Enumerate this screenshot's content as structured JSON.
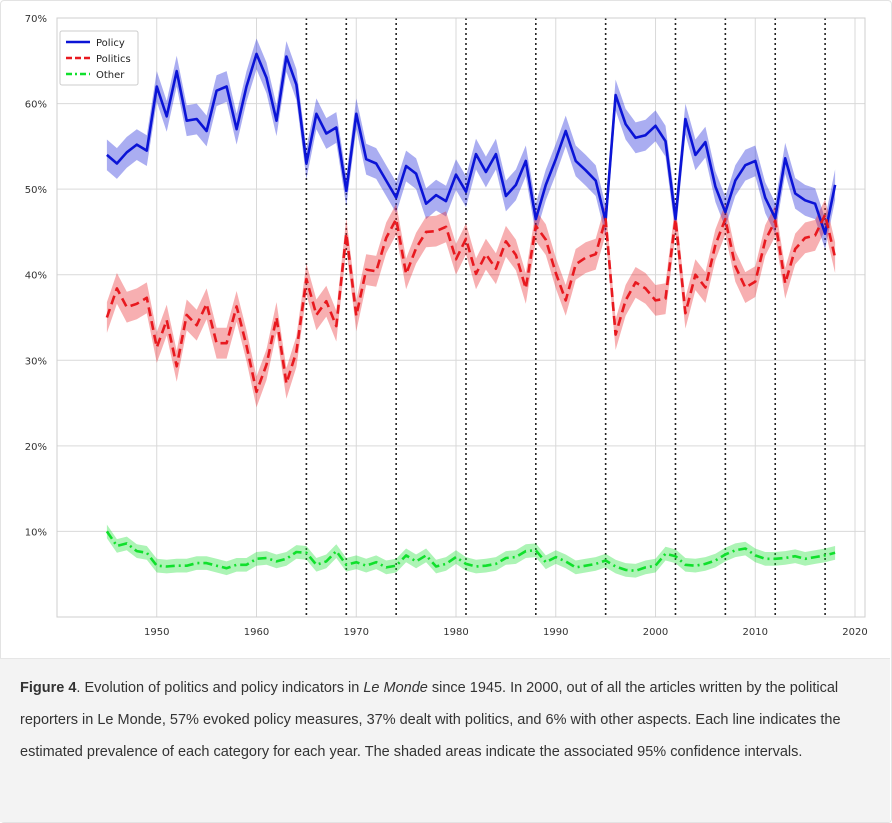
{
  "chart_data": {
    "type": "line",
    "title": "",
    "xlabel": "",
    "ylabel": "",
    "xlim": [
      1940,
      2021
    ],
    "ylim": [
      0,
      70
    ],
    "grid": true,
    "legend_position": "top-left",
    "x_ticks": [
      1950,
      1960,
      1970,
      1980,
      1990,
      2000,
      2010,
      2020
    ],
    "y_ticks": [
      "10%",
      "20%",
      "30%",
      "40%",
      "50%",
      "60%",
      "70%"
    ],
    "y_tick_values": [
      10,
      20,
      30,
      40,
      50,
      60,
      70
    ],
    "vertical_markers": [
      1965,
      1969,
      1974,
      1981,
      1988,
      1995,
      2002,
      2007,
      2012,
      2017
    ],
    "x": [
      1945,
      1946,
      1947,
      1948,
      1949,
      1950,
      1951,
      1952,
      1953,
      1954,
      1955,
      1956,
      1957,
      1958,
      1959,
      1960,
      1961,
      1962,
      1963,
      1964,
      1965,
      1966,
      1967,
      1968,
      1969,
      1970,
      1971,
      1972,
      1973,
      1974,
      1975,
      1976,
      1977,
      1978,
      1979,
      1980,
      1981,
      1982,
      1983,
      1984,
      1985,
      1986,
      1987,
      1988,
      1989,
      1990,
      1991,
      1992,
      1993,
      1994,
      1995,
      1996,
      1997,
      1998,
      1999,
      2000,
      2001,
      2002,
      2003,
      2004,
      2005,
      2006,
      2007,
      2008,
      2009,
      2010,
      2011,
      2012,
      2013,
      2014,
      2015,
      2016,
      2017,
      2018
    ],
    "series": [
      {
        "name": "Policy",
        "color": "#0b14d6",
        "style": "solid",
        "values": [
          54,
          53,
          54.3,
          55.2,
          54.5,
          62,
          58.5,
          63.8,
          58,
          58.2,
          56.8,
          61.5,
          62,
          57,
          62,
          65.8,
          63,
          58,
          65.5,
          62.2,
          53,
          58.8,
          56.5,
          57.2,
          49.8,
          58.8,
          53.5,
          53,
          51,
          49,
          52.7,
          51.8,
          48.3,
          49.3,
          48.6,
          51.7,
          49.7,
          54.1,
          52,
          54.1,
          49.2,
          50.5,
          53.3,
          46.5,
          50.5,
          53.5,
          56.8,
          53.3,
          52.2,
          51,
          46.3,
          61,
          57.6,
          56,
          56.3,
          57.4,
          55.6,
          46.5,
          58.2,
          54,
          55.5,
          50.3,
          47.3,
          51,
          52.8,
          53.3,
          49,
          46.6,
          53.6,
          49.5,
          48.7,
          48.3,
          44.8,
          50.5
        ],
        "ci": 1.8
      },
      {
        "name": "Politics",
        "color": "#e8191f",
        "style": "dashed",
        "values": [
          35,
          38.4,
          36.2,
          36.6,
          37.3,
          31.5,
          34.7,
          29.3,
          35.3,
          34.1,
          36.6,
          32,
          32,
          36.3,
          31.7,
          26.3,
          29.5,
          35,
          27.3,
          31,
          39.5,
          35.3,
          36.9,
          34,
          44.8,
          35.2,
          40.6,
          40.4,
          44.3,
          46.5,
          40.1,
          43.1,
          45,
          45.1,
          45.6,
          41.8,
          44.2,
          40.1,
          42.4,
          40.7,
          43.9,
          42.3,
          38.4,
          45.7,
          44.1,
          40.2,
          37,
          41.2,
          42,
          42.4,
          46.5,
          33,
          37,
          39.1,
          38.4,
          37,
          37.2,
          46.5,
          35.5,
          40,
          38.5,
          43.5,
          46.5,
          41,
          38.5,
          39.2,
          44,
          46.3,
          39,
          43,
          44.3,
          44.6,
          47,
          42
        ],
        "ci": 1.8
      },
      {
        "name": "Other",
        "color": "#10e02c",
        "style": "dashdot",
        "values": [
          10,
          8.3,
          8.6,
          7.7,
          7.5,
          6,
          5.9,
          6,
          6,
          6.3,
          6.3,
          6,
          5.7,
          6.1,
          6.1,
          6.8,
          6.9,
          6.5,
          6.8,
          7.6,
          7.5,
          6.1,
          6.5,
          7.7,
          6.1,
          6.4,
          6,
          6.4,
          5.8,
          6,
          7.2,
          6.5,
          7.2,
          5.9,
          6.2,
          7,
          6.2,
          5.9,
          6,
          6.2,
          6.9,
          7,
          7.7,
          7.8,
          6.4,
          7,
          6.5,
          5.8,
          6,
          6.2,
          6.6,
          5.9,
          5.5,
          5.4,
          5.8,
          6,
          7.4,
          7.1,
          6.1,
          6,
          6.2,
          6.6,
          7.3,
          7.8,
          8,
          7.2,
          6.8,
          6.8,
          6.9,
          7.1,
          6.8,
          7,
          7.2,
          7.5
        ],
        "ci": 0.8
      }
    ]
  },
  "caption": {
    "label": "Figure 4",
    "part1": ". Evolution of politics and policy indicators in ",
    "italic": "Le Monde",
    "part2": " since 1945. In 2000, out of all the articles written by the political reporters in Le Monde, 57% evoked policy measures, 37% dealt with politics, and 6% with other aspects. Each line indicates the estimated prevalence of each category for each year. The shaded areas indicate the associated 95% confidence intervals."
  }
}
